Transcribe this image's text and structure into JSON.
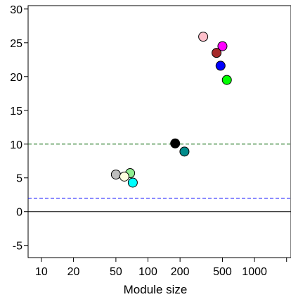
{
  "chart_data": {
    "type": "scatter",
    "title": "",
    "xlabel": "Module size",
    "ylabel": "",
    "x_scale": "log",
    "xlim": [
      7.5,
      2200
    ],
    "ylim": [
      -6.8,
      30.5
    ],
    "x_ticks": [
      {
        "value": 10,
        "label": "10"
      },
      {
        "value": 20,
        "label": "20"
      },
      {
        "value": 50,
        "label": "50"
      },
      {
        "value": 100,
        "label": "100"
      },
      {
        "value": 200,
        "label": "200"
      },
      {
        "value": 500,
        "label": "500"
      },
      {
        "value": 1000,
        "label": "1000"
      },
      {
        "value": 2000,
        "label": ""
      }
    ],
    "y_ticks": [
      {
        "value": -5,
        "label": "-5"
      },
      {
        "value": 0,
        "label": "0"
      },
      {
        "value": 5,
        "label": "5"
      },
      {
        "value": 10,
        "label": "10"
      },
      {
        "value": 15,
        "label": "15"
      },
      {
        "value": 20,
        "label": "20"
      },
      {
        "value": 25,
        "label": "25"
      },
      {
        "value": 30,
        "label": "30"
      }
    ],
    "reference_lines": [
      {
        "y": 0,
        "color": "#000000",
        "style": "solid"
      },
      {
        "y": 2,
        "color": "#0000ff",
        "style": "dashed"
      },
      {
        "y": 10,
        "color": "#006400",
        "style": "dashed"
      }
    ],
    "points": [
      {
        "x": 330,
        "y": 25.9,
        "color": "#ffc0cb"
      },
      {
        "x": 500,
        "y": 24.5,
        "color": "#ff00ff"
      },
      {
        "x": 440,
        "y": 23.5,
        "color": "#a52a2a"
      },
      {
        "x": 480,
        "y": 21.6,
        "color": "#0000ff"
      },
      {
        "x": 550,
        "y": 19.5,
        "color": "#00ff00"
      },
      {
        "x": 180,
        "y": 10.1,
        "color": "#000000"
      },
      {
        "x": 220,
        "y": 8.9,
        "color": "#008b8b"
      },
      {
        "x": 50,
        "y": 5.5,
        "color": "#bebebe"
      },
      {
        "x": 68,
        "y": 5.7,
        "color": "#90ee90"
      },
      {
        "x": 60,
        "y": 5.2,
        "color": "#ffffe0"
      },
      {
        "x": 72,
        "y": 4.3,
        "color": "#00ffff"
      }
    ]
  }
}
